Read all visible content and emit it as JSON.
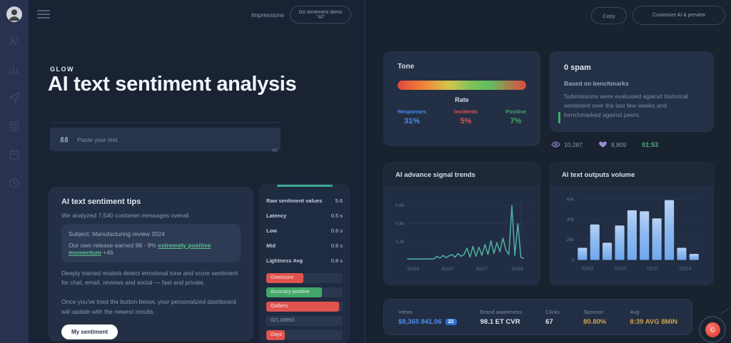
{
  "sidebar": {
    "icons": [
      "users-icon",
      "chart-icon",
      "send-icon",
      "grid-icon",
      "calendar-icon",
      "clock-icon"
    ]
  },
  "topbar": {
    "link_label": "Impressions",
    "cta_label": "Go sentiment demo \"AI\""
  },
  "right_topbar": {
    "copy_label": "Copy",
    "customize_label": "Customize AI & preview"
  },
  "hero": {
    "eyebrow": "GLOW",
    "title": "AI text sentiment analysis",
    "input_placeholder": "Paste your text",
    "char_hint": "46"
  },
  "analysis_card": {
    "title": "AI text sentiment tips",
    "intro": "We analyzed 7,540 customer messages overall",
    "quote": {
      "line1": "Subject: Manufacturing review 2024",
      "line2_prefix": "Our own release earned 98 · 9% ",
      "line2_highlight": "extremely positive momentum",
      "line2_suffix": " +46"
    },
    "body1": "Deeply trained models detect emotional tone and score sentiment for chat, email, reviews and social — fast and private.",
    "body2": "Once you've tried the button below, your personalized dashboard will update with the newest results.",
    "cta_label": "My sentiment"
  },
  "metrics_card": {
    "rows": [
      {
        "label": "Raw sentiment values",
        "value": "5.6"
      },
      {
        "label": "Latency",
        "value": "0.5 s"
      },
      {
        "label": "Low",
        "value": "0.6 s"
      },
      {
        "label": "Mid",
        "value": "0.6 s"
      },
      {
        "label": "Lightness Avg",
        "value": "0.8 s"
      }
    ],
    "bars": [
      {
        "label": "Overscore",
        "pct": 49,
        "color": "red"
      },
      {
        "label": "Accuracy positive",
        "pct": 73,
        "color": "green"
      },
      {
        "label": "Outliers",
        "pct": 95,
        "color": "red"
      },
      {
        "label": "021.08993",
        "pct": 100,
        "color": "neutral"
      },
      {
        "label": "Days",
        "pct": 24,
        "color": "red"
      }
    ]
  },
  "tone_card": {
    "title": "Tone",
    "center_label": "Rate",
    "stats": [
      {
        "label": "Responses",
        "value": "31%",
        "color": "blue"
      },
      {
        "label": "Incidents",
        "value": "5%",
        "color": "red"
      },
      {
        "label": "Positive",
        "value": "7%",
        "color": "green"
      }
    ]
  },
  "spam_card": {
    "title": "0 spam",
    "subtitle": "Based on benchmarks",
    "body": "Submissions were evaluated against historical sentiment over the last few weeks and benchmarked against peers."
  },
  "engagement": {
    "views": "10,287",
    "likes": "8,809",
    "duration": "01:53"
  },
  "chart_data": [
    {
      "type": "line",
      "title": "AI advance signal trends",
      "ylabel_unit": "k",
      "y_ticks": [
        0.2,
        0.4,
        0.6
      ],
      "ymax": 0.7,
      "x_ticks": [
        "02/03",
        "02/10",
        "02/17",
        "02/24"
      ],
      "values": [
        0.01,
        0.01,
        0.012,
        0.01,
        0.011,
        0.01,
        0.012,
        0.011,
        0.01,
        0.012,
        0.04,
        0.02,
        0.05,
        0.025,
        0.045,
        0.06,
        0.03,
        0.07,
        0.04,
        0.06,
        0.13,
        0.03,
        0.15,
        0.04,
        0.14,
        0.05,
        0.17,
        0.06,
        0.21,
        0.07,
        0.19,
        0.09,
        0.24,
        0.11,
        0.06,
        0.6,
        0.05,
        0.4,
        0.03,
        0.015
      ]
    },
    {
      "type": "bar",
      "title": "AI text outputs volume",
      "ylabel_unit": "k",
      "y_ticks": [
        0,
        20,
        40,
        60
      ],
      "ymax": 60,
      "x_ticks": [
        "02/03",
        "02/10",
        "02/17",
        "02/24"
      ],
      "values": [
        12,
        35,
        17,
        34,
        49,
        48,
        41,
        59,
        12,
        6
      ]
    }
  ],
  "footer_stats": {
    "items": [
      {
        "label": "Views",
        "value": "$9,365 841.06",
        "badge": "22",
        "color": "blue"
      },
      {
        "label": "Brand awareness",
        "value": "98.1 ET CVR",
        "color": "white"
      },
      {
        "label": "Clicks",
        "value": "67",
        "color": "white"
      },
      {
        "label": "Sponsor",
        "value": "80.80%",
        "color": "yellow"
      },
      {
        "label": "Avg",
        "value": "8:39 AVG 8MIN",
        "color": "yellow"
      }
    ]
  }
}
